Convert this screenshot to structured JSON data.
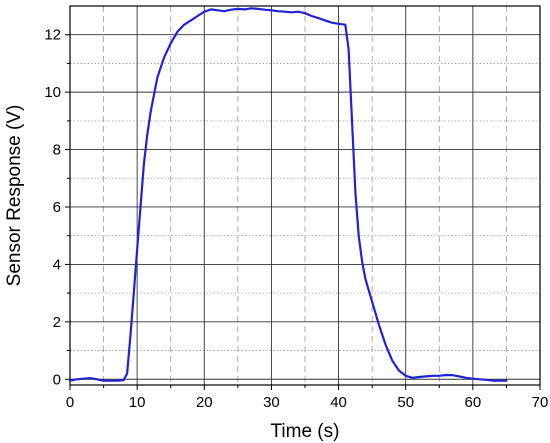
{
  "chart_data": {
    "type": "line",
    "title": "",
    "xlabel": "Time (s)",
    "ylabel": "Sensor Response (V)",
    "xlim": [
      0,
      70
    ],
    "ylim": [
      -0.2,
      13.0
    ],
    "xticks": [
      0,
      10,
      20,
      30,
      40,
      50,
      60,
      70
    ],
    "yticks": [
      0,
      2,
      4,
      6,
      8,
      10,
      12
    ],
    "grid": "major solid, minor dashed/dotted",
    "line_color": "#1f23d6",
    "series": [
      {
        "x": [
          0,
          1,
          2,
          3,
          4,
          5,
          6,
          7,
          8,
          8.5,
          9,
          9.5,
          10,
          10.5,
          11,
          11.5,
          12,
          13,
          14,
          15,
          16,
          17,
          18,
          19,
          20,
          21,
          22,
          23,
          24,
          25,
          26,
          27,
          28,
          29,
          30,
          31,
          32,
          33,
          34,
          35,
          36,
          37,
          38,
          39,
          40,
          41,
          41.5,
          42,
          42.5,
          43,
          43.5,
          44,
          45,
          46,
          47,
          48,
          49,
          50,
          51,
          52,
          53,
          54,
          55,
          56,
          57,
          58,
          59,
          60,
          61,
          62,
          63,
          64,
          65
        ],
        "y": [
          -0.05,
          0.0,
          0.02,
          0.04,
          0.0,
          -0.05,
          -0.05,
          -0.05,
          -0.03,
          0.2,
          1.5,
          3.0,
          4.5,
          6.0,
          7.5,
          8.5,
          9.3,
          10.5,
          11.2,
          11.7,
          12.1,
          12.35,
          12.5,
          12.65,
          12.8,
          12.88,
          12.85,
          12.82,
          12.87,
          12.9,
          12.88,
          12.92,
          12.9,
          12.87,
          12.85,
          12.82,
          12.8,
          12.78,
          12.8,
          12.75,
          12.65,
          12.58,
          12.5,
          12.42,
          12.38,
          12.35,
          11.5,
          9.0,
          6.5,
          5.0,
          4.1,
          3.5,
          2.7,
          1.9,
          1.2,
          0.65,
          0.3,
          0.12,
          0.05,
          0.08,
          0.1,
          0.12,
          0.12,
          0.15,
          0.14,
          0.1,
          0.05,
          0.02,
          0.0,
          -0.02,
          -0.05,
          -0.05,
          -0.05
        ]
      }
    ]
  }
}
